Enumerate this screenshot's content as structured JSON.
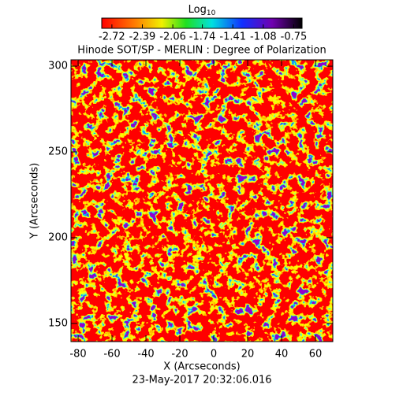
{
  "chart_data": {
    "type": "heatmap",
    "title": "Hinode SOT/SP - MERLIN : Degree of Polarization",
    "colorbar_label": "Log",
    "colorbar_label_sub": "10",
    "colorbar_lim": [
      -2.83,
      -0.66
    ],
    "colorbar_ticks": [
      -2.72,
      -2.39,
      -2.06,
      -1.74,
      -1.41,
      -1.08,
      -0.75
    ],
    "x_label": "X (Arcseconds)",
    "y_label": "Y (Arcseconds)",
    "xlim": [
      -84.2,
      70.2
    ],
    "xticks": [
      -80,
      -60,
      -40,
      -20,
      0,
      20,
      40,
      60
    ],
    "ylim": [
      139.4,
      303.7
    ],
    "yticks": [
      150,
      200,
      250,
      300
    ],
    "footer": "23-May-2017 20:32:06.016"
  }
}
